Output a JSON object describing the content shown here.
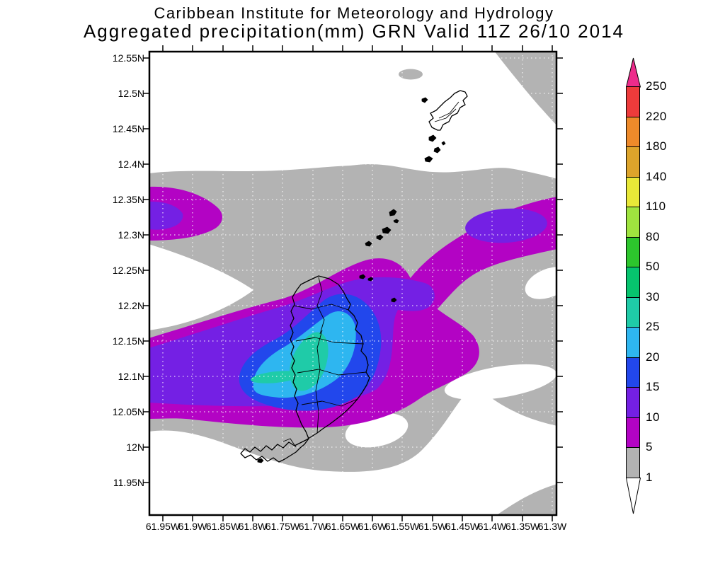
{
  "header": {
    "line1": "Caribbean Institute for Meteorology and Hydrology",
    "line2": "Aggregated precipitation(mm) GRN Valid 11Z 26/10 2014"
  },
  "axes": {
    "lat_labels": [
      "12.55N",
      "12.5N",
      "12.45N",
      "12.4N",
      "12.35N",
      "12.3N",
      "12.25N",
      "12.2N",
      "12.15N",
      "12.1N",
      "12.05N",
      "12N",
      "11.95N"
    ],
    "lon_labels": [
      "61.95W",
      "61.9W",
      "61.85W",
      "61.8W",
      "61.75W",
      "61.7W",
      "61.65W",
      "61.6W",
      "61.55W",
      "61.5W",
      "61.45W",
      "61.4W",
      "61.35W",
      "61.3W"
    ]
  },
  "colorbar": {
    "tick_labels": [
      "250",
      "220",
      "180",
      "140",
      "110",
      "80",
      "50",
      "30",
      "25",
      "20",
      "15",
      "10",
      "5",
      "1"
    ],
    "segments_top_to_bottom": [
      {
        "range": "220-250",
        "color": "#ee3b3b"
      },
      {
        "range": "180-220",
        "color": "#ee8a2a"
      },
      {
        "range": "140-180",
        "color": "#dda42b"
      },
      {
        "range": "110-140",
        "color": "#e8e838"
      },
      {
        "range": "80-110",
        "color": "#9fe43f"
      },
      {
        "range": "50-80",
        "color": "#2dc62d"
      },
      {
        "range": "30-50",
        "color": "#06c46e"
      },
      {
        "range": "25-30",
        "color": "#1fcba8"
      },
      {
        "range": "20-25",
        "color": "#2eb6f0"
      },
      {
        "range": "15-20",
        "color": "#2247ec"
      },
      {
        "range": "10-15",
        "color": "#7420e4"
      },
      {
        "range": "5-10",
        "color": "#b303c4"
      },
      {
        "range": "1-5",
        "color": "#b3b3b3"
      }
    ],
    "above_max_color": "#ed2b8b",
    "below_min_color": "#ffffff"
  },
  "map": {
    "fills": {
      "level0": "#ffffff",
      "level1": "#b3b3b3",
      "level5": "#b303c4",
      "level10": "#7420e4",
      "level15": "#2247ec",
      "level20": "#2eb6f0",
      "level25": "#1fcba8"
    },
    "outline_color": "#000000"
  },
  "chart_data": {
    "type": "heatmap",
    "title": "Aggregated precipitation(mm) GRN Valid 11Z 26/10 2014",
    "source_header": "Caribbean Institute for Meteorology and Hydrology",
    "x_ticks": [
      "61.95W",
      "61.9W",
      "61.85W",
      "61.8W",
      "61.75W",
      "61.7W",
      "61.65W",
      "61.6W",
      "61.55W",
      "61.5W",
      "61.45W",
      "61.4W",
      "61.35W",
      "61.3W"
    ],
    "y_ticks": [
      "12.55N",
      "12.5N",
      "12.45N",
      "12.4N",
      "12.35N",
      "12.3N",
      "12.25N",
      "12.2N",
      "12.15N",
      "12.1N",
      "12.05N",
      "12N",
      "11.95N"
    ],
    "contour_levels_mm": [
      1,
      5,
      10,
      15,
      20,
      25,
      30,
      50,
      80,
      110,
      140,
      180,
      220,
      250
    ],
    "legend_position": "right",
    "grid": true,
    "field_features": [
      {
        "feature": "precipitation maximum",
        "value_mm": "25-30",
        "location": "central Grenada, ~12.12N 61.70W"
      },
      {
        "feature": "secondary 25-30 mm streak",
        "value_mm": "25-30",
        "location": "~12.10N 61.78W west of island center"
      },
      {
        "feature": "10-15 mm core in west band",
        "value_mm": "10-15",
        "location": "~12.32N 61.93W at west edge"
      },
      {
        "feature": "10-15 mm core in northeast band",
        "value_mm": "10-15",
        "location": "~12.32N 61.42W"
      },
      {
        "feature": "background light band",
        "value_mm": "1-5",
        "location": "broad gray band across middle of domain and south of island"
      }
    ],
    "map_outlines": [
      "main island with parish boundaries",
      "northeastern island group with islets",
      "small islet chain mid-domain"
    ]
  }
}
